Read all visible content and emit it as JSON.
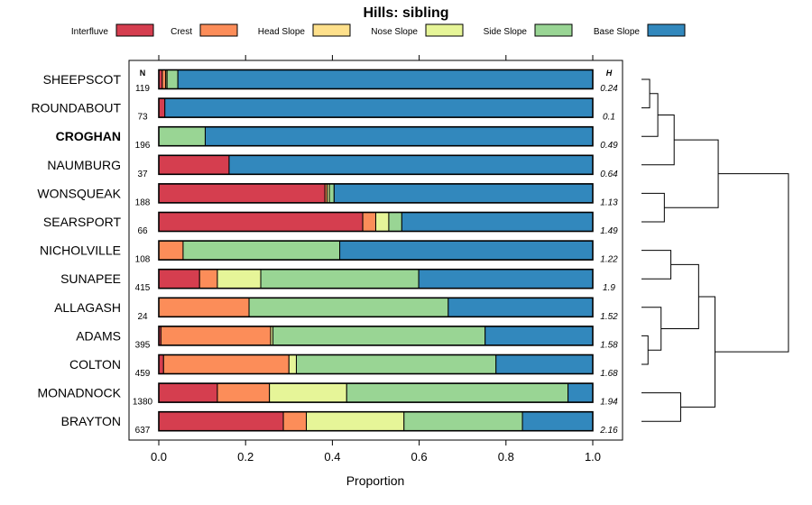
{
  "chart_data": {
    "type": "bar",
    "orientation": "horizontal",
    "stacked": true,
    "title": "Hills: sibling",
    "xlabel": "Proportion",
    "ylabel": "",
    "xlim": [
      0,
      1
    ],
    "x_ticks": [
      "0.0",
      "0.2",
      "0.4",
      "0.6",
      "0.8",
      "1.0"
    ],
    "n_header": "N",
    "h_header": "H",
    "legend_position": "top",
    "series": [
      {
        "name": "Interfluve",
        "color": "#D53E4F"
      },
      {
        "name": "Crest",
        "color": "#FC8D59"
      },
      {
        "name": "Head Slope",
        "color": "#FEE08B"
      },
      {
        "name": "Nose Slope",
        "color": "#E6F598"
      },
      {
        "name": "Side Slope",
        "color": "#99D594"
      },
      {
        "name": "Base Slope",
        "color": "#3288BD"
      }
    ],
    "rows": [
      {
        "name": "SHEEPSCOT",
        "bold": false,
        "n": "119",
        "h": "0.24",
        "values": [
          0.008,
          0.008,
          0.0,
          0.003,
          0.025,
          0.956
        ]
      },
      {
        "name": "ROUNDABOUT",
        "bold": false,
        "n": "73",
        "h": "0.1",
        "values": [
          0.014,
          0.0,
          0.0,
          0.0,
          0.0,
          0.986
        ]
      },
      {
        "name": "CROGHAN",
        "bold": true,
        "n": "196",
        "h": "0.49",
        "values": [
          0.0,
          0.0,
          0.0,
          0.0,
          0.107,
          0.893
        ]
      },
      {
        "name": "NAUMBURG",
        "bold": false,
        "n": "37",
        "h": "0.64",
        "values": [
          0.162,
          0.0,
          0.0,
          0.0,
          0.0,
          0.838
        ]
      },
      {
        "name": "WONSQUEAK",
        "bold": false,
        "n": "188",
        "h": "1.13",
        "values": [
          0.383,
          0.005,
          0.0,
          0.005,
          0.011,
          0.596
        ]
      },
      {
        "name": "SEARSPORT",
        "bold": false,
        "n": "66",
        "h": "1.49",
        "values": [
          0.47,
          0.03,
          0.0,
          0.03,
          0.03,
          0.44
        ]
      },
      {
        "name": "NICHOLVILLE",
        "bold": false,
        "n": "108",
        "h": "1.22",
        "values": [
          0.0,
          0.056,
          0.0,
          0.0,
          0.361,
          0.583
        ]
      },
      {
        "name": "SUNAPEE",
        "bold": false,
        "n": "415",
        "h": "1.9",
        "values": [
          0.094,
          0.041,
          0.0,
          0.1,
          0.364,
          0.401
        ]
      },
      {
        "name": "ALLAGASH",
        "bold": false,
        "n": "24",
        "h": "1.52",
        "values": [
          0.0,
          0.208,
          0.0,
          0.0,
          0.459,
          0.333
        ]
      },
      {
        "name": "ADAMS",
        "bold": false,
        "n": "395",
        "h": "1.58",
        "values": [
          0.005,
          0.253,
          0.0,
          0.005,
          0.489,
          0.248
        ]
      },
      {
        "name": "COLTON",
        "bold": false,
        "n": "459",
        "h": "1.68",
        "values": [
          0.011,
          0.289,
          0.0,
          0.017,
          0.46,
          0.223
        ]
      },
      {
        "name": "MONADNOCK",
        "bold": false,
        "n": "1380",
        "h": "1.94",
        "values": [
          0.135,
          0.12,
          0.0,
          0.178,
          0.51,
          0.057
        ]
      },
      {
        "name": "BRAYTON",
        "bold": false,
        "n": "637",
        "h": "2.16",
        "values": [
          0.287,
          0.053,
          0.0,
          0.225,
          0.273,
          0.162
        ]
      }
    ]
  },
  "dendrogram": {
    "description_label": "",
    "merges": [
      {
        "a": "SHEEPSCOT",
        "b": "ROUNDABOUT",
        "height": 0.05
      },
      {
        "a": "m0",
        "b": "CROGHAN",
        "height": 0.1
      },
      {
        "a": "m1",
        "b": "NAUMBURG",
        "height": 0.2
      },
      {
        "a": "WONSQUEAK",
        "b": "SEARSPORT",
        "height": 0.14
      },
      {
        "a": "m2",
        "b": "m3",
        "height": 0.47
      },
      {
        "a": "ADAMS",
        "b": "COLTON",
        "height": 0.04
      },
      {
        "a": "ALLAGASH",
        "b": "m5",
        "height": 0.12
      },
      {
        "a": "NICHOLVILLE",
        "b": "SUNAPEE",
        "height": 0.18
      },
      {
        "a": "m7",
        "b": "m6",
        "height": 0.35
      },
      {
        "a": "MONADNOCK",
        "b": "BRAYTON",
        "height": 0.24
      },
      {
        "a": "m8",
        "b": "m9",
        "height": 0.45
      },
      {
        "a": "m4",
        "b": "m10",
        "height": 0.9
      }
    ]
  }
}
